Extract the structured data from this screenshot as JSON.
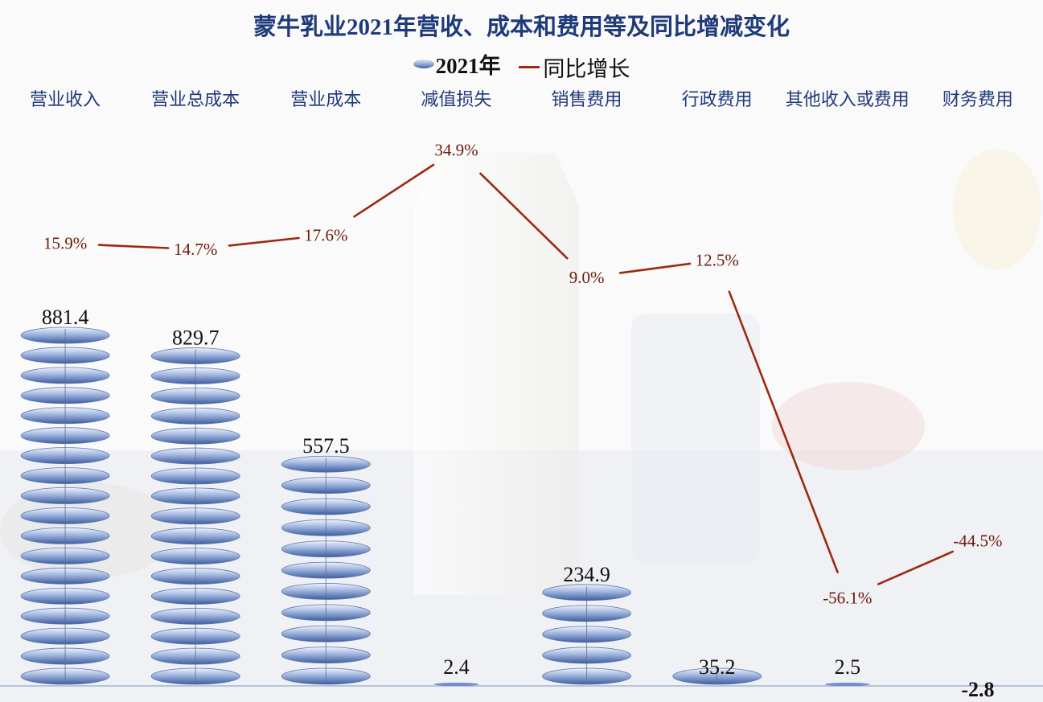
{
  "chart_data": {
    "type": "bar",
    "title": "蒙牛乳业2021年营收、成本和费用等及同比增减变化",
    "categories": [
      "营业收入",
      "营业总成本",
      "营业成本",
      "减值损失",
      "销售费用",
      "行政费用",
      "其他收入或费用",
      "财务费用"
    ],
    "series": [
      {
        "name": "2021年",
        "type": "bar",
        "values": [
          881.4,
          829.7,
          557.5,
          2.4,
          234.9,
          35.2,
          2.5,
          -2.8
        ],
        "labels": [
          "881.4",
          "829.7",
          "557.5",
          "2.4",
          "234.9",
          "35.2",
          "2.5",
          "-2.8"
        ],
        "color": "#6f8fcc"
      },
      {
        "name": "同比增长",
        "type": "line",
        "values": [
          15.9,
          14.7,
          17.6,
          34.9,
          9.0,
          12.5,
          -56.1,
          -44.5
        ],
        "labels": [
          "15.9%",
          "14.7%",
          "17.6%",
          "34.9%",
          "9.0%",
          "12.5%",
          "-56.1%",
          "-44.5%"
        ],
        "color": "#9b2a10"
      }
    ],
    "legend_position": "top-center",
    "grid": false
  }
}
